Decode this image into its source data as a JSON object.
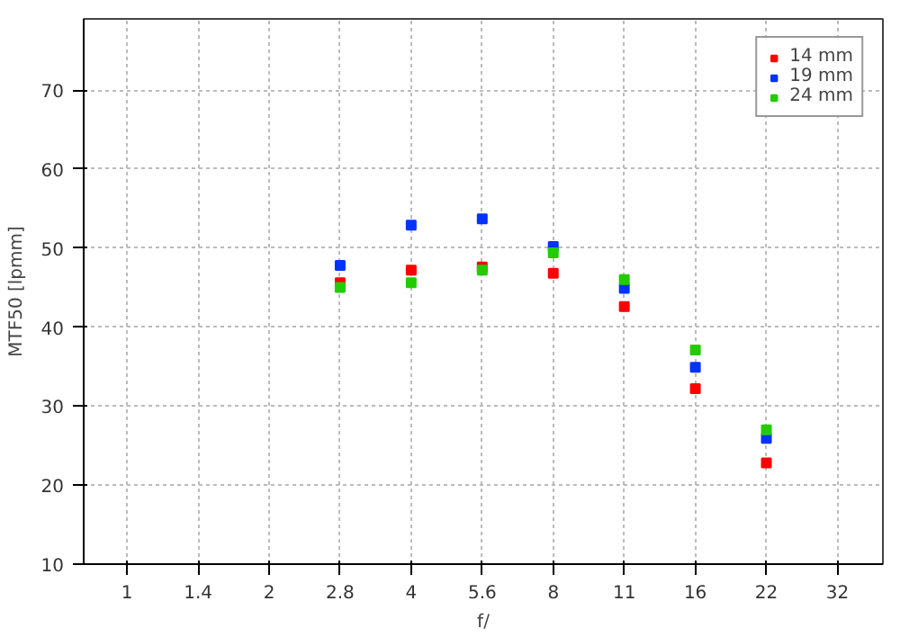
{
  "chart_data": {
    "type": "scatter",
    "xlabel": "f/",
    "ylabel": "MTF50 [lpmm]",
    "categories": [
      "1",
      "1.4",
      "2",
      "2.8",
      "4",
      "5.6",
      "8",
      "11",
      "16",
      "22",
      "32"
    ],
    "series": [
      {
        "name": "14 mm",
        "color": "#ff0000",
        "values": [
          null,
          null,
          null,
          45.6,
          47.2,
          47.6,
          46.8,
          42.6,
          32.2,
          22.8,
          null
        ]
      },
      {
        "name": "19 mm",
        "color": "#0033ff",
        "values": [
          null,
          null,
          null,
          47.8,
          52.9,
          53.7,
          50.2,
          44.9,
          34.9,
          25.9,
          null
        ]
      },
      {
        "name": "24 mm",
        "color": "#22cc00",
        "values": [
          null,
          null,
          null,
          45.0,
          45.6,
          47.2,
          49.4,
          46.0,
          37.1,
          27.0,
          null
        ]
      }
    ],
    "ylim": [
      10,
      79
    ],
    "yticks": [
      10,
      20,
      30,
      40,
      50,
      60,
      70
    ],
    "grid": true,
    "legend": "top right",
    "marker": "square"
  }
}
